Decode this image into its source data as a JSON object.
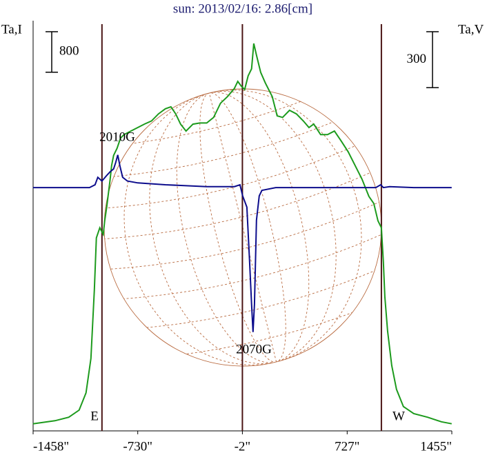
{
  "chart_data": {
    "type": "line",
    "title": "sun: 2013/02/16: 2.86[cm]",
    "y_label": "Ta,I",
    "y2_label": "Ta,V",
    "xlim": [
      -1458,
      1455
    ],
    "xticks": [
      {
        "value": -1458,
        "label": "-1458\""
      },
      {
        "value": -730,
        "label": "-730\""
      },
      {
        "value": -2,
        "label": "-2\""
      },
      {
        "value": 727,
        "label": "727\""
      },
      {
        "value": 1455,
        "label": "1455\""
      }
    ],
    "ylim": [
      -100,
      8000
    ],
    "y2lim": [
      -1300,
      900
    ],
    "scale_bar": 800,
    "scale_bar2": 300,
    "vlines": [
      -979,
      -2,
      965
    ],
    "vline_color": "#4a1414",
    "annotations": [
      "2010G",
      "2070G",
      "E",
      "W"
    ],
    "series": [
      {
        "name": "Ta,I",
        "color": "#1c9a1c",
        "x": [
          -1459,
          -1306,
          -1210,
          -1138,
          -1090,
          -1056,
          -1032,
          -1018,
          -994,
          -970,
          -960,
          -946,
          -922,
          -912,
          -898,
          -874,
          -850,
          -826,
          -778,
          -730,
          -682,
          -634,
          -586,
          -538,
          -499,
          -466,
          -432,
          -394,
          -346,
          -298,
          -250,
          -202,
          -154,
          -106,
          -58,
          -34,
          -10,
          14,
          38,
          62,
          77,
          96,
          125,
          158,
          206,
          240,
          278,
          326,
          374,
          422,
          461,
          494,
          542,
          590,
          638,
          686,
          734,
          782,
          830,
          878,
          912,
          941,
          965,
          979,
          989,
          1008,
          1037,
          1070,
          1118,
          1190,
          1286,
          1382,
          1454
        ],
        "values": [
          40,
          100,
          170,
          310,
          650,
          1330,
          2690,
          3710,
          3910,
          3780,
          4050,
          4320,
          4870,
          5140,
          5340,
          5480,
          5680,
          5750,
          5820,
          5890,
          5960,
          6020,
          6160,
          6260,
          6300,
          6160,
          5956,
          5820,
          5956,
          5980,
          5980,
          6090,
          6370,
          6500,
          6660,
          6800,
          6710,
          6640,
          6910,
          7050,
          7550,
          7320,
          6980,
          6770,
          6500,
          6120,
          6090,
          6230,
          6160,
          6020,
          5890,
          5960,
          5750,
          5750,
          5820,
          5620,
          5410,
          5140,
          4870,
          4530,
          4390,
          4050,
          3910,
          3230,
          2550,
          1870,
          1190,
          720,
          380,
          240,
          170,
          80,
          40
        ]
      },
      {
        "name": "Ta,V",
        "color": "#0c0c8c",
        "axis": "y2",
        "x": [
          -1459,
          -1066,
          -1027,
          -1008,
          -979,
          -946,
          -922,
          -898,
          -883,
          -869,
          -854,
          -835,
          -802,
          -730,
          -538,
          -250,
          -58,
          -19,
          0,
          29,
          48,
          62,
          72,
          82,
          96,
          115,
          134,
          230,
          710,
          926,
          960,
          979,
          1022,
          1190,
          1454
        ],
        "values": [
          5,
          5,
          20,
          60,
          40,
          70,
          90,
          105,
          140,
          180,
          120,
          60,
          40,
          30,
          20,
          10,
          10,
          20,
          -40,
          -100,
          -390,
          -620,
          -770,
          -620,
          -170,
          -40,
          -10,
          5,
          5,
          5,
          20,
          5,
          10,
          5,
          5
        ]
      }
    ]
  }
}
